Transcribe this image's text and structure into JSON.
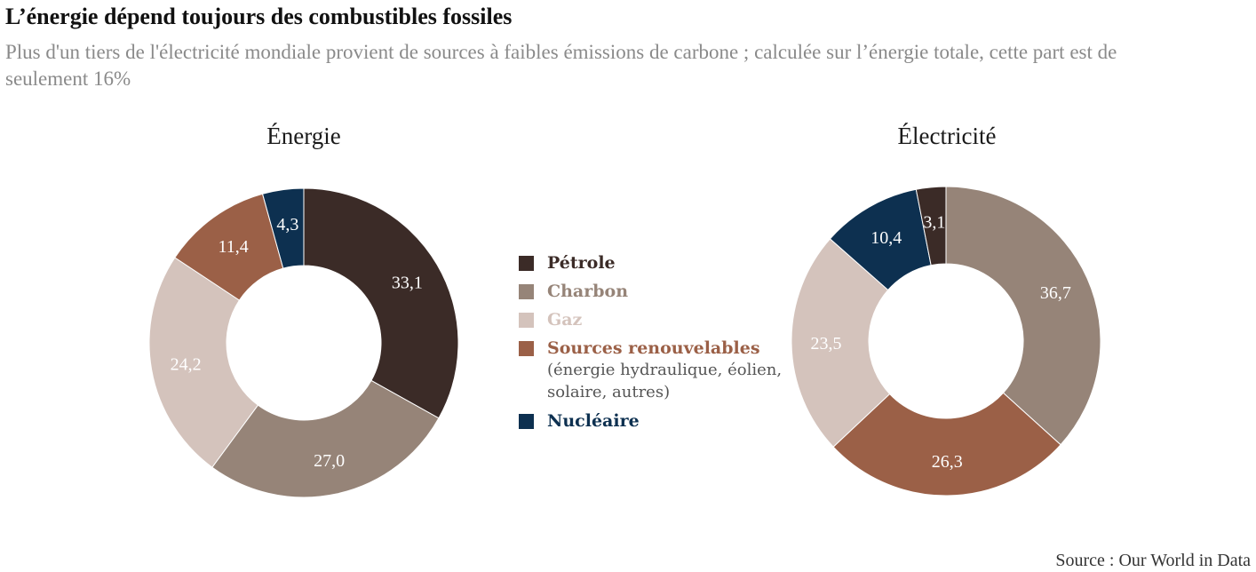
{
  "header": {
    "title": "L’énergie dépend toujours des combustibles fossiles",
    "subtitle": "Plus d'un tiers de l'électricité mondiale provient de sources à faibles émissions de carbone ; calculée sur l’énergie totale, cette part est de seulement 16%"
  },
  "legend": [
    {
      "label": "Pétrole",
      "note": "",
      "color": "#3b2b27"
    },
    {
      "label": "Charbon",
      "note": "",
      "color": "#968478"
    },
    {
      "label": "Gaz",
      "note": "",
      "color": "#d4c3bc"
    },
    {
      "label": "Sources renouvelables",
      "note": "(énergie hydraulique, éolien, solaire, autres)",
      "color": "#9b6047"
    },
    {
      "label": "Nucléaire",
      "note": "",
      "color": "#0d3050"
    }
  ],
  "chart_data": [
    {
      "type": "pie",
      "title": "Énergie",
      "categories": [
        "Pétrole",
        "Charbon",
        "Gaz",
        "Sources renouvelables",
        "Nucléaire"
      ],
      "values": [
        33.1,
        27.0,
        24.2,
        11.4,
        4.3
      ],
      "value_labels": [
        "33,1",
        "27,0",
        "24,2",
        "11,4",
        "4,3"
      ],
      "colors": [
        "#3b2b27",
        "#968478",
        "#d4c3bc",
        "#9b6047",
        "#0d3050"
      ],
      "label_colors": [
        "#ffffff",
        "#ffffff",
        "#ffffff",
        "#ffffff",
        "#ffffff"
      ]
    },
    {
      "type": "pie",
      "title": "Électricité",
      "categories": [
        "Charbon",
        "Sources renouvelables",
        "Gaz",
        "Nucléaire",
        "Pétrole"
      ],
      "values": [
        36.7,
        26.3,
        23.5,
        10.4,
        3.1
      ],
      "value_labels": [
        "36,7",
        "26,3",
        "23,5",
        "10,4",
        "3,1"
      ],
      "colors": [
        "#968478",
        "#9b6047",
        "#d4c3bc",
        "#0d3050",
        "#3b2b27"
      ],
      "label_colors": [
        "#ffffff",
        "#ffffff",
        "#ffffff",
        "#ffffff",
        "#ffffff"
      ]
    }
  ],
  "footer": {
    "source": "Source : Our World in Data"
  }
}
